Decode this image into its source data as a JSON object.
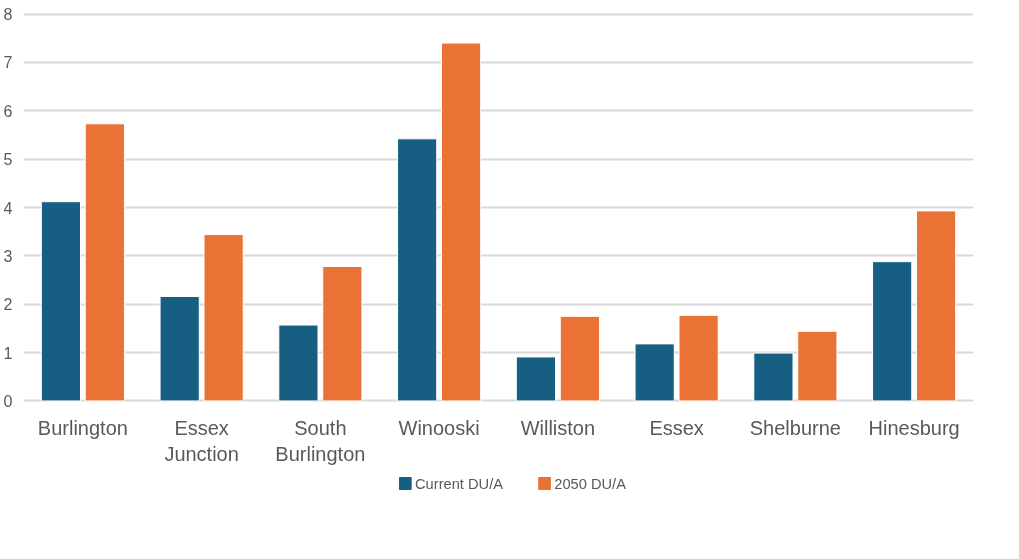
{
  "chart_data": {
    "type": "bar",
    "categories": [
      "Burlington",
      "Essex Junction",
      "South Burlington",
      "Winooski",
      "Williston",
      "Essex",
      "Shelburne",
      "Hinesburg"
    ],
    "series": [
      {
        "name": "Current DU/A",
        "color": "#175f82",
        "values": [
          4.12,
          2.16,
          1.57,
          5.42,
          0.91,
          1.18,
          0.99,
          2.88
        ]
      },
      {
        "name": "2050 DU/A",
        "color": "#e97234",
        "values": [
          5.73,
          3.44,
          2.78,
          7.4,
          1.75,
          1.77,
          1.44,
          3.93
        ]
      }
    ],
    "ylim": [
      0,
      8
    ],
    "yticks": [
      0,
      1,
      2,
      3,
      4,
      5,
      6,
      7,
      8
    ],
    "grid": "y",
    "legend": "bottom"
  }
}
